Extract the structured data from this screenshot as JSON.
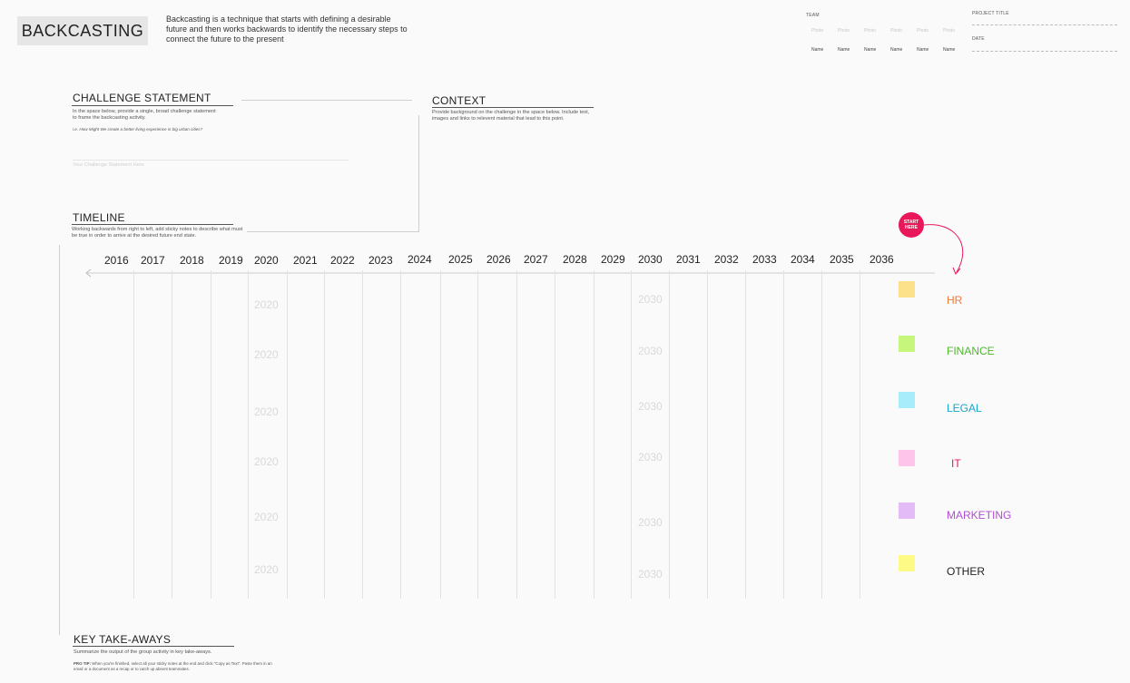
{
  "header": {
    "title": "BACKCASTING",
    "intro": "Backcasting is a technique that starts with defining a desirable future and then works backwards to identify the necessary steps to connect the future to the present",
    "team_label": "TEAM",
    "team_photo_label": "Photo",
    "team_names": [
      "Name",
      "Name",
      "Name",
      "Name",
      "Name",
      "Name"
    ],
    "project_title_label": "PROJECT TITLE",
    "date_label": "DATE"
  },
  "challenge": {
    "title": "CHALLENGE STATEMENT",
    "description": "In the space below, provide a single, broad challenge statement to frame the backcasting activity.",
    "example": "i.e. How Might We create a better living experience in big urban cities?",
    "placeholder": "Your Challenge Statement Here"
  },
  "context": {
    "title": "CONTEXT",
    "description": "Provide background on the challenge in the space below. Include text, images and links to relevent material that lead to this point."
  },
  "timeline": {
    "title": "TIMELINE",
    "description": "Working backwards from right to left, add sticky notes to describe what must be true in order to arrive at the desired future end state.",
    "years": [
      "2016",
      "2017",
      "2018",
      "2019",
      "2020",
      "2021",
      "2022",
      "2023",
      "2024",
      "2025",
      "2026",
      "2027",
      "2028",
      "2029",
      "2030",
      "2031",
      "2032",
      "2033",
      "2034",
      "2035",
      "2036"
    ],
    "ghost_2020": [
      "2020",
      "2020",
      "2020",
      "2020",
      "2020",
      "2020"
    ],
    "ghost_2030": [
      "2030",
      "2030",
      "2030",
      "2030",
      "2030",
      "2030"
    ],
    "start_label": "START HERE"
  },
  "departments": [
    {
      "label": "HR",
      "sticky": "#fde08a",
      "color": "#f07a3a"
    },
    {
      "label": "FINANCE",
      "sticky": "#c6f77c",
      "color": "#4cb82a"
    },
    {
      "label": "LEGAL",
      "sticky": "#a6ecfb",
      "color": "#19a6c9"
    },
    {
      "label": "IT",
      "sticky": "#ffc4ea",
      "color": "#e8185a"
    },
    {
      "label": "MARKETING",
      "sticky": "#e2bbf7",
      "color": "#b24fd1"
    },
    {
      "label": "OTHER",
      "sticky": "#fdfa86",
      "color": "#222222"
    }
  ],
  "takeaways": {
    "title": "KEY TAKE-AWAYS",
    "description": "Summarize the output of the group activity in key take-aways.",
    "tip_label": "PRO TIP:",
    "tip": "When you're finished, select all your sticky notes at the end and click \"Copy as Text\". Paste them in an email or a document as a recap or to catch up absent teammates."
  }
}
